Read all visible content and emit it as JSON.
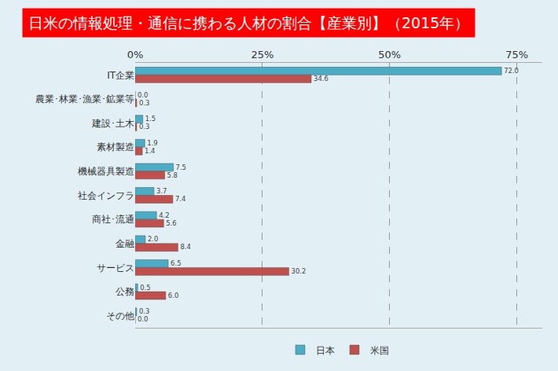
{
  "chart_data": {
    "type": "bar",
    "orientation": "horizontal",
    "title": "日米の情報処理・通信に携わる人材の割合【産業別】（2015年）",
    "categories": [
      "IT企業",
      "農業･林業･漁業･鉱業等",
      "建設･土木",
      "素材製造",
      "機械器具製造",
      "社会インフラ",
      "商社･流通",
      "金融",
      "サービス",
      "公務",
      "その他"
    ],
    "series": [
      {
        "name": "日本",
        "color": "#4bacc6",
        "values": [
          72.0,
          0.0,
          1.5,
          1.9,
          7.5,
          3.7,
          4.2,
          2.0,
          6.5,
          0.5,
          0.3
        ],
        "value_labels": [
          "72.0",
          "0.0",
          "1.5",
          "1.9",
          "7.5",
          "3.7",
          "4.2",
          "2.0",
          "6.5",
          "0.5",
          "0.3"
        ]
      },
      {
        "name": "米国",
        "color": "#c0504d",
        "values": [
          34.6,
          0.3,
          0.3,
          1.4,
          5.8,
          7.4,
          5.6,
          8.4,
          30.2,
          6.0,
          0.0
        ],
        "value_labels": [
          "34.6",
          "0.3",
          "0.3",
          "1.4",
          "5.8",
          "7.4",
          "5.6",
          "8.4",
          "30.2",
          "6.0",
          "0.0"
        ]
      }
    ],
    "xlim": [
      0,
      80
    ],
    "xticks": [
      {
        "value": 0,
        "label": "0%"
      },
      {
        "value": 25,
        "label": "25%"
      },
      {
        "value": 50,
        "label": "50%"
      },
      {
        "value": 75,
        "label": "75%"
      }
    ],
    "grid": true,
    "legend": "bottom",
    "data_labels": true
  }
}
